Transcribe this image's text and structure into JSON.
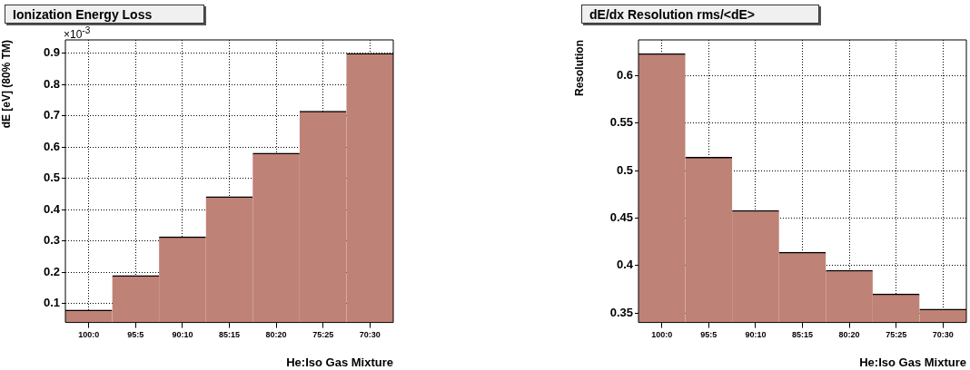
{
  "chart_data": [
    {
      "type": "bar",
      "title": "Ionization Energy Loss",
      "xlabel": "He:Iso Gas Mixture",
      "ylabel": "dE [eV] (80% TM)",
      "annotations": [
        "×10$^{-3}$"
      ],
      "categories": [
        "100:0",
        "95:5",
        "90:10",
        "85:15",
        "80:20",
        "75:25",
        "70:30"
      ],
      "values": [
        0.08,
        0.19,
        0.314,
        0.442,
        0.581,
        0.715,
        0.9
      ],
      "color": "#bf8277",
      "ylim": [
        0.04,
        0.943
      ],
      "yticks": [
        0.1,
        0.2,
        0.3,
        0.4,
        0.5,
        0.6,
        0.7,
        0.8,
        0.9
      ],
      "grid": true
    },
    {
      "type": "bar",
      "title": "dE/dx Resolution rms/<dE>",
      "xlabel": "He:Iso Gas Mixture",
      "ylabel": "Resolution",
      "categories": [
        "100:0",
        "95:5",
        "90:10",
        "85:15",
        "80:20",
        "75:25",
        "70:30"
      ],
      "values": [
        0.623,
        0.514,
        0.458,
        0.414,
        0.395,
        0.37,
        0.354
      ],
      "color": "#bf8277",
      "ylim": [
        0.34,
        0.6375
      ],
      "yticks": [
        0.35,
        0.4,
        0.45,
        0.5,
        0.55,
        0.6
      ],
      "grid": true
    }
  ]
}
